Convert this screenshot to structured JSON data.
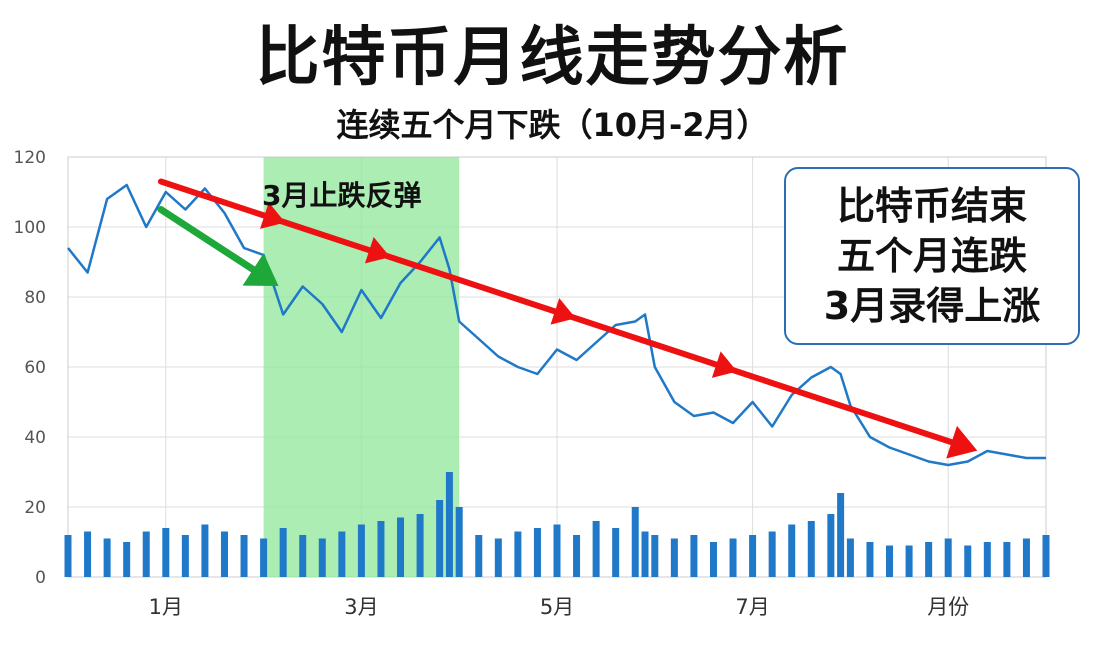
{
  "title": "比特币月线走势分析",
  "subtitle": "连续五个月下跌（10月-2月）",
  "annotation_box": [
    "比特币结束",
    "五个月连跌",
    "3月录得上涨"
  ],
  "highlight_label": "3月止跌反弹",
  "colors": {
    "price_line": "#1f78c8",
    "volume_bar": "#1f78c8",
    "highlight": "#8fe79a",
    "trend_arrow": "#ee1111",
    "short_arrow": "#1ea83a",
    "grid": "#dddddd"
  },
  "chart_data": {
    "type": "line",
    "title": "比特币月线走势分析",
    "subtitle": "连续五个月下跌（10月-2月）",
    "xlabel": "",
    "ylabel": "",
    "ylim": [
      0,
      120
    ],
    "xlim": [
      0,
      10
    ],
    "yticks": [
      0,
      20,
      40,
      60,
      80,
      100,
      120
    ],
    "xticks": [
      {
        "value": 1,
        "label": "1月"
      },
      {
        "value": 3,
        "label": "3月"
      },
      {
        "value": 5,
        "label": "5月"
      },
      {
        "value": 7,
        "label": "7月"
      },
      {
        "value": 9,
        "label": "月份"
      }
    ],
    "grid": true,
    "highlight_range": [
      2,
      4
    ],
    "series": [
      {
        "type": "line",
        "x": [
          0,
          0.2,
          0.4,
          0.6,
          0.8,
          1.0,
          1.2,
          1.4,
          1.6,
          1.8,
          2.0,
          2.2,
          2.4,
          2.6,
          2.8,
          3.0,
          3.2,
          3.4,
          3.6,
          3.8,
          3.9,
          4.0,
          4.2,
          4.4,
          4.6,
          4.8,
          5.0,
          5.2,
          5.4,
          5.6,
          5.8,
          5.9,
          6.0,
          6.2,
          6.4,
          6.6,
          6.8,
          7.0,
          7.2,
          7.4,
          7.6,
          7.8,
          7.9,
          8.0,
          8.2,
          8.4,
          8.6,
          8.8,
          9.0,
          9.2,
          9.4,
          9.6,
          9.8,
          10.0
        ],
        "values": [
          94,
          87,
          108,
          112,
          100,
          110,
          105,
          111,
          104,
          94,
          92,
          75,
          83,
          78,
          70,
          82,
          74,
          84,
          90,
          97,
          88,
          73,
          68,
          63,
          60,
          58,
          65,
          62,
          67,
          72,
          73,
          75,
          60,
          50,
          46,
          47,
          44,
          50,
          43,
          52,
          57,
          60,
          58,
          49,
          40,
          37,
          35,
          33,
          32,
          33,
          36,
          35,
          34,
          34
        ]
      },
      {
        "type": "bar",
        "x": [
          0,
          0.2,
          0.4,
          0.6,
          0.8,
          1.0,
          1.2,
          1.4,
          1.6,
          1.8,
          2.0,
          2.2,
          2.4,
          2.6,
          2.8,
          3.0,
          3.2,
          3.4,
          3.6,
          3.8,
          3.9,
          4.0,
          4.2,
          4.4,
          4.6,
          4.8,
          5.0,
          5.2,
          5.4,
          5.6,
          5.8,
          5.9,
          6.0,
          6.2,
          6.4,
          6.6,
          6.8,
          7.0,
          7.2,
          7.4,
          7.6,
          7.8,
          7.9,
          8.0,
          8.2,
          8.4,
          8.6,
          8.8,
          9.0,
          9.2,
          9.4,
          9.6,
          9.8,
          10.0
        ],
        "values": [
          12,
          13,
          11,
          10,
          13,
          14,
          12,
          15,
          13,
          12,
          11,
          14,
          12,
          11,
          13,
          15,
          16,
          17,
          18,
          22,
          30,
          20,
          12,
          11,
          13,
          14,
          15,
          12,
          16,
          14,
          20,
          13,
          12,
          11,
          12,
          10,
          11,
          12,
          13,
          15,
          16,
          18,
          24,
          11,
          10,
          9,
          9,
          10,
          11,
          9,
          10,
          10,
          11,
          12
        ]
      }
    ]
  }
}
